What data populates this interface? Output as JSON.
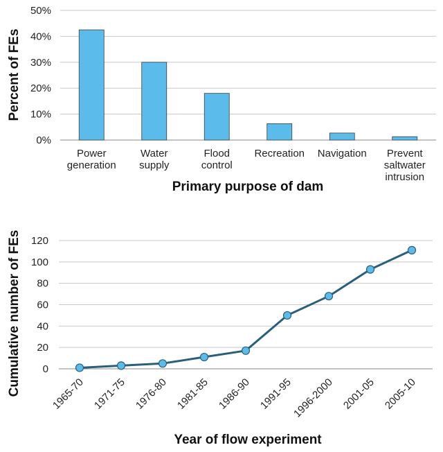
{
  "colors": {
    "bar_fill": "#5bbcec",
    "bar_stroke": "#3a3a3a",
    "line": "#2a5f7a",
    "marker": "#5bbcec"
  },
  "chart_data": [
    {
      "type": "bar",
      "categories": [
        [
          "Power",
          "generation"
        ],
        [
          "Water",
          "supply"
        ],
        [
          "Flood",
          "control"
        ],
        [
          "Recreation"
        ],
        [
          "Navigation"
        ],
        [
          "Prevent",
          "saltwater",
          "intrusion"
        ]
      ],
      "values": [
        42.5,
        30,
        18,
        6.3,
        2.7,
        1.3
      ],
      "xlabel": "Primary purpose of dam",
      "ylabel": "Percent of FEs",
      "ylim": [
        0,
        50
      ],
      "yticks": [
        "0%",
        "10%",
        "20%",
        "30%",
        "40%",
        "50%"
      ],
      "grid": true
    },
    {
      "type": "line",
      "categories": [
        "1965-70",
        "1971-75",
        "1976-80",
        "1981-85",
        "1986-90",
        "1991-95",
        "1996-2000",
        "2001-05",
        "2005-10"
      ],
      "values": [
        1,
        3,
        5,
        11,
        17,
        50,
        68,
        93,
        111
      ],
      "xlabel": "Year of flow experiment",
      "ylabel": "Cumulative number of FEs",
      "ylim": [
        0,
        120
      ],
      "yticks": [
        "0",
        "20",
        "40",
        "60",
        "80",
        "100",
        "120"
      ],
      "grid": true
    }
  ]
}
